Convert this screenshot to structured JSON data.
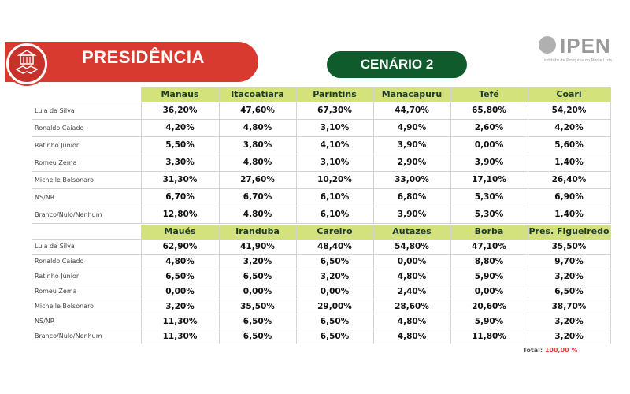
{
  "header": {
    "title": "PRESIDÊNCIA",
    "scenario": "CENÁRIO 2",
    "org_name": "IPEN",
    "org_subtitle": "Instituto de Pesquisa do Norte Ltda",
    "colors": {
      "banner": "#d93a30",
      "pill": "#0f5b2b",
      "header_cells": "#d4e27c"
    }
  },
  "candidates": [
    "Lula da Silva",
    "Ronaldo Caiado",
    "Ratinho Júnior",
    "Romeu Zema",
    "Michelle Bolsonaro",
    "NS/NR",
    "Branco/Nulo/Nenhum"
  ],
  "table1": {
    "cities": [
      "Manaus",
      "Itacoatiara",
      "Parintins",
      "Manacapuru",
      "Tefé",
      "Coari"
    ],
    "rows": [
      [
        "36,20%",
        "47,60%",
        "67,30%",
        "44,70%",
        "65,80%",
        "54,20%"
      ],
      [
        "4,20%",
        "4,80%",
        "3,10%",
        "4,90%",
        "2,60%",
        "4,20%"
      ],
      [
        "5,50%",
        "3,80%",
        "4,10%",
        "3,90%",
        "0,00%",
        "5,60%"
      ],
      [
        "3,30%",
        "4,80%",
        "3,10%",
        "2,90%",
        "3,90%",
        "1,40%"
      ],
      [
        "31,30%",
        "27,60%",
        "10,20%",
        "33,00%",
        "17,10%",
        "26,40%"
      ],
      [
        "6,70%",
        "6,70%",
        "6,10%",
        "6,80%",
        "5,30%",
        "6,90%"
      ],
      [
        "12,80%",
        "4,80%",
        "6,10%",
        "3,90%",
        "5,30%",
        "1,40%"
      ]
    ]
  },
  "table2": {
    "cities": [
      "Maués",
      "Iranduba",
      "Careiro",
      "Autazes",
      "Borba",
      "Pres. Figueiredo"
    ],
    "rows": [
      [
        "62,90%",
        "41,90%",
        "48,40%",
        "54,80%",
        "47,10%",
        "35,50%"
      ],
      [
        "4,80%",
        "3,20%",
        "6,50%",
        "0,00%",
        "8,80%",
        "9,70%"
      ],
      [
        "6,50%",
        "6,50%",
        "3,20%",
        "4,80%",
        "5,90%",
        "3,20%"
      ],
      [
        "0,00%",
        "0,00%",
        "0,00%",
        "2,40%",
        "0,00%",
        "6,50%"
      ],
      [
        "3,20%",
        "35,50%",
        "29,00%",
        "28,60%",
        "20,60%",
        "38,70%"
      ],
      [
        "11,30%",
        "6,50%",
        "6,50%",
        "4,80%",
        "5,90%",
        "3,20%"
      ],
      [
        "11,30%",
        "6,50%",
        "6,50%",
        "4,80%",
        "11,80%",
        "3,20%"
      ]
    ]
  },
  "footer": {
    "total_label": "Total:",
    "total_value": "100,00 %"
  }
}
